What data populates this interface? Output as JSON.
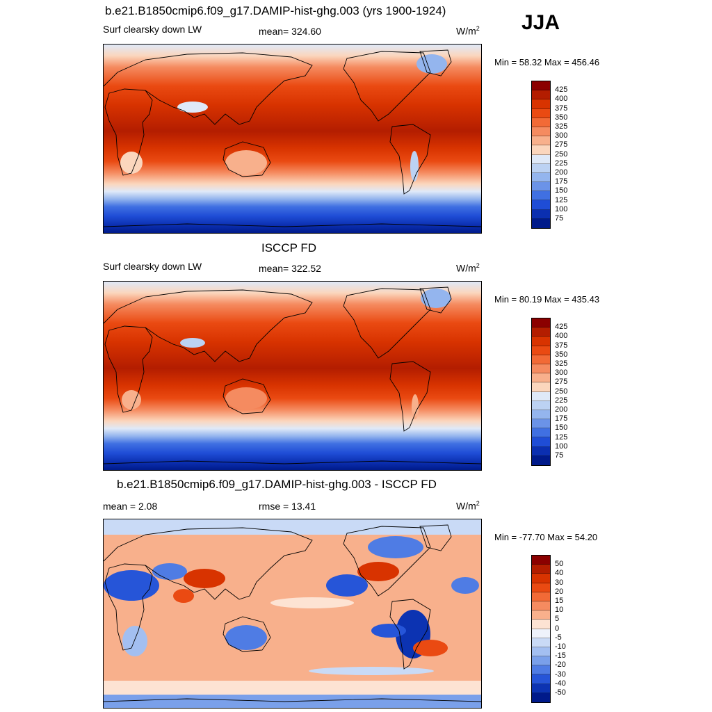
{
  "season": "JJA",
  "panels": [
    {
      "title": "b.e21.B1850cmip6.f09_g17.DAMIP-hist-ghg.003 (yrs 1900-1924)",
      "left": "Surf clearsky down LW",
      "center": "mean= 324.60",
      "units": "W/m",
      "units_sup": "2",
      "minmax": "Min =  58.32 Max = 456.46",
      "colorbar": {
        "labels": [
          "425",
          "400",
          "375",
          "350",
          "325",
          "300",
          "275",
          "250",
          "225",
          "200",
          "175",
          "150",
          "125",
          "100",
          "75"
        ],
        "colors": [
          "#8b0000",
          "#b31d00",
          "#d83300",
          "#ea4a12",
          "#f26a36",
          "#f58b60",
          "#f8b08c",
          "#fbd6bd",
          "#dfe9f8",
          "#bcd2f3",
          "#94b5ee",
          "#6b93e8",
          "#4070e2",
          "#1f4dd6",
          "#0b2fb0",
          "#001a8a"
        ]
      },
      "map_kind": "full"
    },
    {
      "title": "ISCCP FD",
      "left": "Surf clearsky down LW",
      "center": "mean= 322.52",
      "units": "W/m",
      "units_sup": "2",
      "minmax": "Min =  80.19 Max = 435.43",
      "colorbar": {
        "labels": [
          "425",
          "400",
          "375",
          "350",
          "325",
          "300",
          "275",
          "250",
          "225",
          "200",
          "175",
          "150",
          "125",
          "100",
          "75"
        ],
        "colors": [
          "#8b0000",
          "#b31d00",
          "#d83300",
          "#ea4a12",
          "#f26a36",
          "#f58b60",
          "#f8b08c",
          "#fbd6bd",
          "#dfe9f8",
          "#bcd2f3",
          "#94b5ee",
          "#6b93e8",
          "#4070e2",
          "#1f4dd6",
          "#0b2fb0",
          "#001a8a"
        ]
      },
      "map_kind": "full"
    },
    {
      "title": "b.e21.B1850cmip6.f09_g17.DAMIP-hist-ghg.003 - ISCCP FD",
      "left": "mean =   2.08",
      "center": "rmse =  13.41",
      "units": "W/m",
      "units_sup": "2",
      "minmax": "Min = -77.70 Max =  54.20",
      "colorbar": {
        "labels": [
          "50",
          "40",
          "30",
          "20",
          "15",
          "10",
          "5",
          "0",
          "-5",
          "-10",
          "-15",
          "-20",
          "-30",
          "-40",
          "-50"
        ],
        "colors": [
          "#8b0000",
          "#b31d00",
          "#d83300",
          "#ea4a12",
          "#f26a36",
          "#f58b60",
          "#f8b08c",
          "#fde3d3",
          "#eef2fb",
          "#c9daf6",
          "#a3bff1",
          "#7aa0ea",
          "#4f7ce4",
          "#2655d8",
          "#0c33b2",
          "#001a8a"
        ]
      },
      "map_kind": "diff"
    }
  ]
}
